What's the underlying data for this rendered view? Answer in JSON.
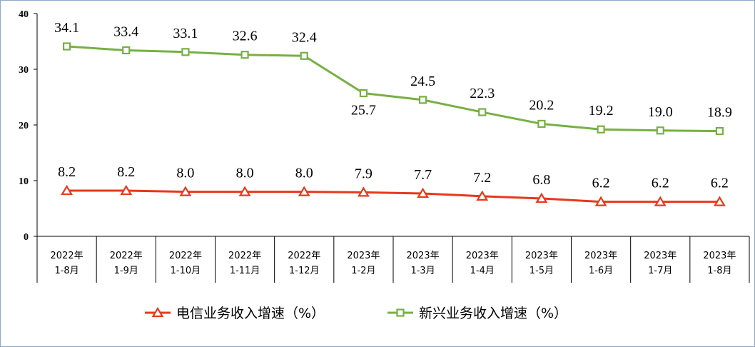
{
  "chart_data": {
    "type": "line",
    "title": "",
    "xlabel": "",
    "ylabel": "",
    "ylim": [
      0,
      40
    ],
    "yticks": [
      0,
      10,
      20,
      30,
      40
    ],
    "grid": false,
    "legend_position": "bottom",
    "categories": [
      [
        "2022年",
        "1-8月"
      ],
      [
        "2022年",
        "1-9月"
      ],
      [
        "2022年",
        "1-10月"
      ],
      [
        "2022年",
        "1-11月"
      ],
      [
        "2022年",
        "1-12月"
      ],
      [
        "2023年",
        "1-2月"
      ],
      [
        "2023年",
        "1-3月"
      ],
      [
        "2023年",
        "1-4月"
      ],
      [
        "2023年",
        "1-5月"
      ],
      [
        "2023年",
        "1-6月"
      ],
      [
        "2023年",
        "1-7月"
      ],
      [
        "2023年",
        "1-8月"
      ]
    ],
    "series": [
      {
        "name": "电信业务收入增速（%）",
        "color": "#e8381b",
        "marker": "triangle",
        "values": [
          8.2,
          8.2,
          8.0,
          8.0,
          8.0,
          7.9,
          7.7,
          7.2,
          6.8,
          6.2,
          6.2,
          6.2
        ],
        "labels": [
          "8.2",
          "8.2",
          "8.0",
          "8.0",
          "8.0",
          "7.9",
          "7.7",
          "7.2",
          "6.8",
          "6.2",
          "6.2",
          "6.2"
        ]
      },
      {
        "name": "新兴业务收入增速（%）",
        "color": "#77b043",
        "marker": "square",
        "values": [
          34.1,
          33.4,
          33.1,
          32.6,
          32.4,
          25.7,
          24.5,
          22.3,
          20.2,
          19.2,
          19.0,
          18.9
        ],
        "labels": [
          "34.1",
          "33.4",
          "33.1",
          "32.6",
          "32.4",
          "25.7",
          "24.5",
          "22.3",
          "20.2",
          "19.2",
          "19.0",
          "18.9"
        ]
      }
    ]
  }
}
